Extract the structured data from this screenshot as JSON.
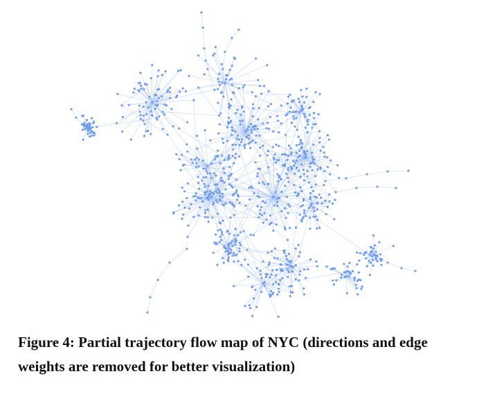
{
  "figure": {
    "caption": "Figure 4: Partial trajectory flow map of NYC (directions and edge weights are removed for better visualization)"
  }
}
